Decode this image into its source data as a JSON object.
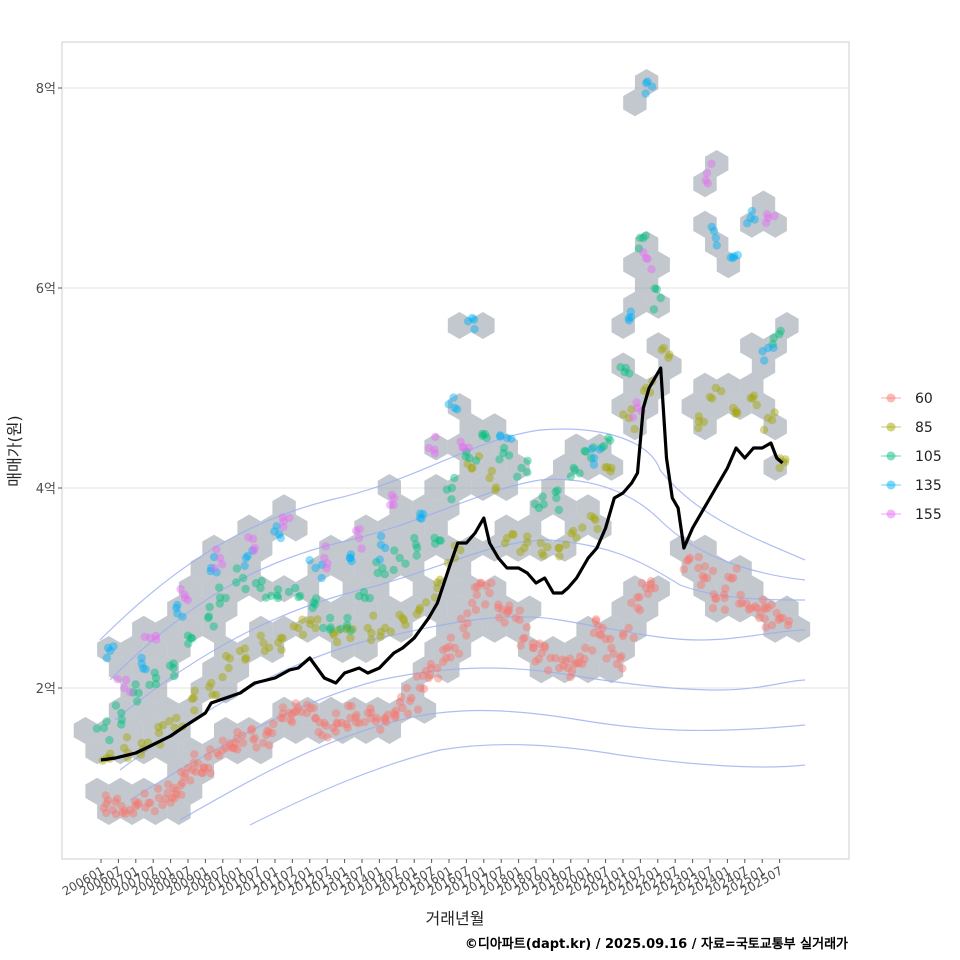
{
  "chart_data": {
    "type": "scatter",
    "xlabel": "거래년월",
    "ylabel": "매매가(원)",
    "caption": "©디아파트(dapt.kr) / 2025.09.16 / 자료=국토교통부 실거래가",
    "x_range": [
      "2006-01",
      "2025-12"
    ],
    "ylim": [
      0.5,
      8.5
    ],
    "y_ticks": [
      {
        "value": 2,
        "label": "2억"
      },
      {
        "value": 4,
        "label": "4억"
      },
      {
        "value": 6,
        "label": "6억"
      },
      {
        "value": 8,
        "label": "8억"
      }
    ],
    "x_ticks": [
      "200601",
      "200607",
      "200701",
      "200707",
      "200801",
      "200807",
      "200901",
      "200907",
      "201001",
      "201007",
      "201101",
      "201107",
      "201201",
      "201207",
      "201301",
      "201307",
      "201401",
      "201407",
      "201501",
      "201507",
      "201601",
      "201607",
      "201701",
      "201707",
      "201801",
      "201807",
      "201901",
      "201907",
      "202001",
      "202007",
      "202101",
      "202107",
      "202201",
      "202207",
      "202301",
      "202307",
      "202401",
      "202407",
      "202501",
      "202507"
    ],
    "grid": true,
    "legend_position": "right",
    "legend": [
      {
        "label": "60",
        "color": "#F8766D"
      },
      {
        "label": "85",
        "color": "#A3A500"
      },
      {
        "label": "105",
        "color": "#00BF7D"
      },
      {
        "label": "135",
        "color": "#00B0F6"
      },
      {
        "label": "155",
        "color": "#E76BF3"
      }
    ],
    "hexbin_color": "#9aa4ad",
    "contour_color": "#9aaef0",
    "trend_line": {
      "color": "#000000",
      "points": [
        [
          "2006-01",
          1.28
        ],
        [
          "2006-06",
          1.3
        ],
        [
          "2007-01",
          1.35
        ],
        [
          "2007-06",
          1.42
        ],
        [
          "2008-01",
          1.52
        ],
        [
          "2008-06",
          1.62
        ],
        [
          "2009-01",
          1.75
        ],
        [
          "2009-03",
          1.85
        ],
        [
          "2009-06",
          1.88
        ],
        [
          "2010-01",
          1.95
        ],
        [
          "2010-06",
          2.05
        ],
        [
          "2011-01",
          2.1
        ],
        [
          "2011-06",
          2.18
        ],
        [
          "2011-09",
          2.2
        ],
        [
          "2012-01",
          2.3
        ],
        [
          "2012-06",
          2.1
        ],
        [
          "2012-10",
          2.05
        ],
        [
          "2013-01",
          2.15
        ],
        [
          "2013-06",
          2.2
        ],
        [
          "2013-09",
          2.15
        ],
        [
          "2014-01",
          2.2
        ],
        [
          "2014-06",
          2.35
        ],
        [
          "2014-09",
          2.4
        ],
        [
          "2015-01",
          2.5
        ],
        [
          "2015-06",
          2.7
        ],
        [
          "2015-09",
          2.85
        ],
        [
          "2016-01",
          3.2
        ],
        [
          "2016-04",
          3.45
        ],
        [
          "2016-07",
          3.45
        ],
        [
          "2016-10",
          3.55
        ],
        [
          "2017-01",
          3.7
        ],
        [
          "2017-03",
          3.45
        ],
        [
          "2017-06",
          3.3
        ],
        [
          "2017-09",
          3.2
        ],
        [
          "2018-01",
          3.2
        ],
        [
          "2018-04",
          3.15
        ],
        [
          "2018-07",
          3.05
        ],
        [
          "2018-10",
          3.1
        ],
        [
          "2019-01",
          2.95
        ],
        [
          "2019-04",
          2.95
        ],
        [
          "2019-06",
          3.0
        ],
        [
          "2019-09",
          3.1
        ],
        [
          "2020-01",
          3.3
        ],
        [
          "2020-04",
          3.4
        ],
        [
          "2020-07",
          3.6
        ],
        [
          "2020-10",
          3.9
        ],
        [
          "2021-01",
          3.95
        ],
        [
          "2021-04",
          4.05
        ],
        [
          "2021-06",
          4.15
        ],
        [
          "2021-08",
          4.8
        ],
        [
          "2021-10",
          5.0
        ],
        [
          "2022-01",
          5.15
        ],
        [
          "2022-02",
          5.2
        ],
        [
          "2022-04",
          4.3
        ],
        [
          "2022-06",
          3.9
        ],
        [
          "2022-08",
          3.8
        ],
        [
          "2022-10",
          3.4
        ],
        [
          "2023-01",
          3.6
        ],
        [
          "2023-04",
          3.75
        ],
        [
          "2023-07",
          3.9
        ],
        [
          "2023-10",
          4.05
        ],
        [
          "2024-01",
          4.2
        ],
        [
          "2024-04",
          4.4
        ],
        [
          "2024-07",
          4.3
        ],
        [
          "2024-10",
          4.4
        ],
        [
          "2025-01",
          4.4
        ],
        [
          "2025-04",
          4.45
        ],
        [
          "2025-06",
          4.3
        ],
        [
          "2025-08",
          4.25
        ]
      ]
    },
    "series": [
      {
        "name": "60",
        "generated": false,
        "points": [
          [
            "2006-02",
            0.8
          ],
          [
            "2006-05",
            0.78
          ],
          [
            "2006-08",
            0.82
          ],
          [
            "2006-11",
            0.78
          ],
          [
            "2007-02",
            0.85
          ],
          [
            "2007-06",
            0.85
          ],
          [
            "2007-09",
            0.9
          ],
          [
            "2007-12",
            0.95
          ],
          [
            "2008-02",
            1.0
          ],
          [
            "2008-05",
            1.05
          ],
          [
            "2008-07",
            1.2
          ],
          [
            "2008-09",
            1.25
          ],
          [
            "2008-12",
            1.15
          ],
          [
            "2009-02",
            1.2
          ],
          [
            "2009-05",
            1.35
          ],
          [
            "2009-08",
            1.4
          ],
          [
            "2009-11",
            1.4
          ],
          [
            "2010-02",
            1.45
          ],
          [
            "2010-06",
            1.5
          ],
          [
            "2010-09",
            1.45
          ],
          [
            "2010-12",
            1.55
          ],
          [
            "2011-03",
            1.7
          ],
          [
            "2011-06",
            1.75
          ],
          [
            "2011-09",
            1.8
          ],
          [
            "2011-12",
            1.75
          ],
          [
            "2012-03",
            1.7
          ],
          [
            "2012-06",
            1.65
          ],
          [
            "2012-09",
            1.6
          ],
          [
            "2012-12",
            1.65
          ],
          [
            "2013-03",
            1.7
          ],
          [
            "2013-06",
            1.65
          ],
          [
            "2013-09",
            1.75
          ],
          [
            "2013-12",
            1.7
          ],
          [
            "2014-03",
            1.7
          ],
          [
            "2014-06",
            1.75
          ],
          [
            "2014-09",
            1.8
          ],
          [
            "2014-12",
            1.9
          ],
          [
            "2015-03",
            2.0
          ],
          [
            "2015-06",
            2.1
          ],
          [
            "2015-09",
            2.2
          ],
          [
            "2015-12",
            2.3
          ],
          [
            "2016-03",
            2.4
          ],
          [
            "2016-06",
            2.6
          ],
          [
            "2016-09",
            2.85
          ],
          [
            "2016-12",
            3.05
          ],
          [
            "2017-03",
            2.95
          ],
          [
            "2017-06",
            2.8
          ],
          [
            "2017-09",
            2.75
          ],
          [
            "2017-12",
            2.7
          ],
          [
            "2018-03",
            2.5
          ],
          [
            "2018-06",
            2.4
          ],
          [
            "2018-09",
            2.35
          ],
          [
            "2018-12",
            2.3
          ],
          [
            "2019-03",
            2.2
          ],
          [
            "2019-06",
            2.2
          ],
          [
            "2019-09",
            2.25
          ],
          [
            "2019-12",
            2.4
          ],
          [
            "2020-03",
            2.55
          ],
          [
            "2020-06",
            2.6
          ],
          [
            "2020-09",
            2.4
          ],
          [
            "2020-12",
            2.3
          ],
          [
            "2021-03",
            2.6
          ],
          [
            "2021-06",
            2.8
          ],
          [
            "2021-09",
            3.0
          ],
          [
            "2021-12",
            3.0
          ],
          [
            "2022-12",
            3.3
          ],
          [
            "2023-03",
            3.2
          ],
          [
            "2023-06",
            3.1
          ],
          [
            "2023-09",
            2.9
          ],
          [
            "2023-12",
            2.9
          ],
          [
            "2024-03",
            3.1
          ],
          [
            "2024-06",
            2.85
          ],
          [
            "2024-09",
            2.8
          ],
          [
            "2024-12",
            2.7
          ],
          [
            "2025-03",
            2.8
          ],
          [
            "2025-06",
            2.75
          ],
          [
            "2025-08",
            2.7
          ]
        ]
      },
      {
        "name": "85",
        "generated": false,
        "points": [
          [
            "2006-03",
            1.3
          ],
          [
            "2006-09",
            1.4
          ],
          [
            "2007-03",
            1.45
          ],
          [
            "2007-09",
            1.55
          ],
          [
            "2008-03",
            1.7
          ],
          [
            "2008-09",
            1.9
          ],
          [
            "2009-03",
            2.05
          ],
          [
            "2009-09",
            2.2
          ],
          [
            "2010-03",
            2.3
          ],
          [
            "2010-09",
            2.45
          ],
          [
            "2011-03",
            2.5
          ],
          [
            "2011-09",
            2.6
          ],
          [
            "2012-03",
            2.6
          ],
          [
            "2012-09",
            2.55
          ],
          [
            "2013-03",
            2.5
          ],
          [
            "2013-09",
            2.6
          ],
          [
            "2014-03",
            2.6
          ],
          [
            "2014-09",
            2.7
          ],
          [
            "2015-03",
            2.8
          ],
          [
            "2015-09",
            3.0
          ],
          [
            "2016-03",
            3.3
          ],
          [
            "2016-09",
            4.2
          ],
          [
            "2017-03",
            4.1
          ],
          [
            "2017-09",
            3.5
          ],
          [
            "2018-03",
            3.4
          ],
          [
            "2018-09",
            3.35
          ],
          [
            "2019-03",
            3.4
          ],
          [
            "2019-09",
            3.5
          ],
          [
            "2020-03",
            3.7
          ],
          [
            "2020-09",
            4.2
          ],
          [
            "2021-03",
            4.7
          ],
          [
            "2021-09",
            5.0
          ],
          [
            "2022-03",
            5.4
          ],
          [
            "2023-03",
            4.6
          ],
          [
            "2023-09",
            5.0
          ],
          [
            "2024-03",
            4.8
          ],
          [
            "2024-09",
            4.9
          ],
          [
            "2025-03",
            4.7
          ],
          [
            "2025-07",
            4.2
          ]
        ]
      },
      {
        "name": "105",
        "generated": false,
        "points": [
          [
            "2006-02",
            1.6
          ],
          [
            "2006-08",
            1.75
          ],
          [
            "2007-02",
            1.95
          ],
          [
            "2007-08",
            2.1
          ],
          [
            "2008-02",
            2.2
          ],
          [
            "2008-08",
            2.5
          ],
          [
            "2009-02",
            2.7
          ],
          [
            "2009-08",
            2.9
          ],
          [
            "2010-02",
            3.1
          ],
          [
            "2010-08",
            3.0
          ],
          [
            "2011-02",
            2.9
          ],
          [
            "2011-08",
            3.0
          ],
          [
            "2012-02",
            2.8
          ],
          [
            "2012-08",
            2.7
          ],
          [
            "2013-02",
            2.7
          ],
          [
            "2013-08",
            2.9
          ],
          [
            "2014-02",
            3.2
          ],
          [
            "2014-08",
            3.3
          ],
          [
            "2015-02",
            3.4
          ],
          [
            "2015-08",
            3.5
          ],
          [
            "2016-02",
            4.0
          ],
          [
            "2016-08",
            4.3
          ],
          [
            "2017-02",
            4.5
          ],
          [
            "2017-08",
            4.4
          ],
          [
            "2018-02",
            4.2
          ],
          [
            "2018-08",
            3.8
          ],
          [
            "2019-02",
            3.9
          ],
          [
            "2019-08",
            4.2
          ],
          [
            "2020-02",
            4.3
          ],
          [
            "2020-08",
            4.5
          ],
          [
            "2021-02",
            5.2
          ],
          [
            "2021-08",
            6.5
          ],
          [
            "2022-02",
            5.9
          ],
          [
            "2025-05",
            5.5
          ]
        ]
      },
      {
        "name": "135",
        "generated": false,
        "points": [
          [
            "2006-03",
            2.3
          ],
          [
            "2007-03",
            2.3
          ],
          [
            "2008-03",
            2.8
          ],
          [
            "2009-03",
            3.2
          ],
          [
            "2010-03",
            3.3
          ],
          [
            "2011-03",
            3.5
          ],
          [
            "2012-03",
            3.2
          ],
          [
            "2013-03",
            3.3
          ],
          [
            "2014-03",
            3.4
          ],
          [
            "2015-03",
            3.7
          ],
          [
            "2016-03",
            4.8
          ],
          [
            "2016-09",
            5.7
          ],
          [
            "2017-09",
            4.5
          ],
          [
            "2020-03",
            4.3
          ],
          [
            "2021-03",
            5.7
          ],
          [
            "2021-09",
            8.05
          ],
          [
            "2023-09",
            6.5
          ],
          [
            "2024-03",
            6.3
          ],
          [
            "2024-09",
            6.7
          ],
          [
            "2025-03",
            5.4
          ]
        ]
      },
      {
        "name": "155",
        "generated": false,
        "points": [
          [
            "2006-09",
            2.0
          ],
          [
            "2007-06",
            2.5
          ],
          [
            "2008-06",
            2.9
          ],
          [
            "2009-06",
            3.3
          ],
          [
            "2010-06",
            3.4
          ],
          [
            "2011-06",
            3.7
          ],
          [
            "2012-06",
            3.3
          ],
          [
            "2013-06",
            3.5
          ],
          [
            "2014-06",
            3.9
          ],
          [
            "2015-06",
            4.4
          ],
          [
            "2016-06",
            4.4
          ],
          [
            "2021-06",
            4.8
          ],
          [
            "2021-09",
            6.3
          ],
          [
            "2023-06",
            7.15
          ],
          [
            "2025-03",
            6.7
          ]
        ]
      }
    ]
  }
}
